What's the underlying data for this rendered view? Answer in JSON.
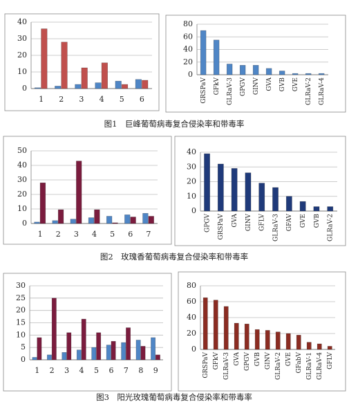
{
  "captions": [
    "图1　巨峰葡萄病毒复合侵染率和带毒率",
    "图2　玫瑰香葡萄病毒复合侵染率和带毒率",
    "图3　阳光玫瑰葡萄病毒复合侵染率和带毒率"
  ],
  "chart_data": [
    {
      "type": "bar",
      "categories": [
        "1",
        "2",
        "3",
        "4",
        "5",
        "6"
      ],
      "series": [
        {
          "color": "#4f86c6",
          "values": [
            0.5,
            1.5,
            2.5,
            3.5,
            4.5,
            5.5
          ]
        },
        {
          "color": "#c0504d",
          "values": [
            36,
            28,
            12.5,
            15.5,
            2.5,
            5
          ]
        }
      ],
      "ylim": [
        0,
        40
      ],
      "yticks": [
        0,
        10,
        20,
        30,
        40
      ],
      "grid": true
    },
    {
      "type": "bar",
      "categories": [
        "GRSPaV",
        "GFkV",
        "GLRaV-3",
        "GPGV",
        "GINV",
        "GVA",
        "GVB",
        "GVE",
        "GLRaV-2",
        "GLRaV-4"
      ],
      "values": [
        70,
        55,
        17,
        15,
        15,
        10,
        6,
        2,
        2,
        2
      ],
      "color": "#4f86c6",
      "ylim": [
        0,
        80
      ],
      "yticks": [
        0,
        20,
        40,
        60,
        80
      ],
      "grid": true
    },
    {
      "type": "bar",
      "categories": [
        "1",
        "2",
        "3",
        "4",
        "5",
        "6",
        "7"
      ],
      "series": [
        {
          "color": "#4f86c6",
          "values": [
            1,
            2,
            3,
            4,
            5,
            6,
            7
          ]
        },
        {
          "color": "#7b1c3e",
          "values": [
            28,
            9.5,
            43,
            9.5,
            0.5,
            4.5,
            5
          ]
        }
      ],
      "ylim": [
        0,
        50
      ],
      "yticks": [
        0,
        10,
        20,
        30,
        40,
        50
      ],
      "grid": true
    },
    {
      "type": "bar",
      "categories": [
        "GPGV",
        "GRSPaV",
        "GVA",
        "GINV",
        "GFLV",
        "GLRaV-3",
        "GFAV",
        "GVE",
        "GVB",
        "GLRaV-2"
      ],
      "values": [
        39,
        32,
        29,
        26,
        19,
        16,
        10,
        6.5,
        3,
        3
      ],
      "color": "#1f3a7a",
      "ylim": [
        0,
        40
      ],
      "yticks": [
        0,
        10,
        20,
        30,
        40
      ],
      "grid": true
    },
    {
      "type": "bar",
      "categories": [
        "1",
        "2",
        "3",
        "4",
        "5",
        "6",
        "7",
        "8",
        "9"
      ],
      "series": [
        {
          "color": "#4f86c6",
          "values": [
            1,
            2,
            3,
            4,
            5,
            6,
            7,
            8,
            9
          ]
        },
        {
          "color": "#7b1c3e",
          "values": [
            9,
            25,
            11,
            16.5,
            11,
            7.5,
            13,
            5.5,
            2
          ]
        }
      ],
      "ylim": [
        0,
        30
      ],
      "yticks": [
        0,
        5,
        10,
        15,
        20,
        25,
        30
      ],
      "grid": true
    },
    {
      "type": "bar",
      "categories": [
        "GRSPaV",
        "GFkV",
        "GLRaV-3",
        "GVA",
        "GPGV",
        "GVB",
        "GINV",
        "GLRaV-2",
        "GVE",
        "GFabV",
        "GLRaV-1",
        "GLRaV-4",
        "GFLV"
      ],
      "values": [
        65,
        62,
        54,
        33,
        32,
        25,
        24,
        22,
        20,
        18,
        9,
        7,
        4
      ],
      "color": "#8b2c22",
      "ylim": [
        0,
        80
      ],
      "yticks": [
        0,
        20,
        40,
        60,
        80
      ],
      "grid": true
    }
  ]
}
